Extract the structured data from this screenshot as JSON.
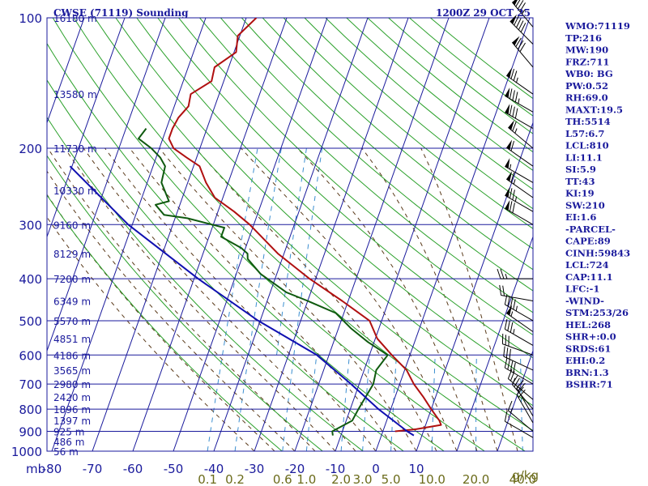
{
  "header": {
    "station": "CWSE (71119) Sounding",
    "time": "1200Z 29 OCT 25"
  },
  "colors": {
    "axis": "#1a1a9c",
    "isobar": "#1a1a9c",
    "isotherm": "#1a1a9c",
    "dry_adiabat": "#2aa02a",
    "moist_adiabat": "#5a3a1a",
    "mixing_ratio": "#3c8fd0",
    "temperature": "#b01010",
    "dewpoint": "#0f5a0f",
    "parcel": "#1010b0",
    "wind": "#000000"
  },
  "chart_data": {
    "type": "line",
    "diagram": "skew-T log-P",
    "xlabel": "",
    "ylabel": "mb",
    "pressure_ticks": [
      100,
      200,
      300,
      400,
      500,
      600,
      700,
      800,
      900,
      1000
    ],
    "temperature_ticks": [
      -80,
      -70,
      -60,
      -50,
      -40,
      -30,
      -20,
      -10,
      0,
      10
    ],
    "temperature_tick_labels": [
      "-80",
      "-70",
      "-60",
      "-50",
      "-40",
      "-30",
      "-20",
      "-10",
      "0",
      "10"
    ],
    "mixing_ratio_labels": [
      {
        "label": "0.1",
        "value": 0.1
      },
      {
        "label": "0.2",
        "value": 0.2
      },
      {
        "label": "0.6",
        "value": 0.6
      },
      {
        "label": "1.0",
        "value": 1.0
      },
      {
        "label": "2.0",
        "value": 2.0
      },
      {
        "label": "3.0",
        "value": 3.0
      },
      {
        "label": "5.0",
        "value": 5.0
      },
      {
        "label": "10.0",
        "value": 10.0
      },
      {
        "label": "20.0",
        "value": 20.0
      },
      {
        "label": "40.0",
        "value": 40.0
      }
    ],
    "mixing_ratio_unit": "g/kg",
    "height_labels": [
      {
        "label": "16180 m",
        "p": 100
      },
      {
        "label": "13580 m",
        "p": 150
      },
      {
        "label": "11730 m",
        "p": 200
      },
      {
        "label": "10330 m",
        "p": 250
      },
      {
        "label": "9160 m",
        "p": 300
      },
      {
        "label": "8129 m",
        "p": 350
      },
      {
        "label": "7200 m",
        "p": 400
      },
      {
        "label": "6349 m",
        "p": 450
      },
      {
        "label": "5570 m",
        "p": 500
      },
      {
        "label": "4851 m",
        "p": 550
      },
      {
        "label": "4186 m",
        "p": 600
      },
      {
        "label": "3565 m",
        "p": 650
      },
      {
        "label": "2980 m",
        "p": 700
      },
      {
        "label": "2420 m",
        "p": 750
      },
      {
        "label": "1896 m",
        "p": 800
      },
      {
        "label": "1397 m",
        "p": 850
      },
      {
        "label": "925 m",
        "p": 900
      },
      {
        "label": "486 m",
        "p": 950
      },
      {
        "label": "56 m",
        "p": 1000
      }
    ],
    "series": [
      {
        "key": "temperature",
        "points": [
          {
            "p": 100,
            "t": -67.5
          },
          {
            "p": 110,
            "t": -70.5
          },
          {
            "p": 120,
            "t": -69.5
          },
          {
            "p": 130,
            "t": -73.5
          },
          {
            "p": 140,
            "t": -73.0
          },
          {
            "p": 150,
            "t": -77.0
          },
          {
            "p": 160,
            "t": -76.5
          },
          {
            "p": 170,
            "t": -78.0
          },
          {
            "p": 180,
            "t": -78.5
          },
          {
            "p": 190,
            "t": -78.5
          },
          {
            "p": 200,
            "t": -76.5
          },
          {
            "p": 210,
            "t": -72.5
          },
          {
            "p": 220,
            "t": -68.5
          },
          {
            "p": 240,
            "t": -65.5
          },
          {
            "p": 260,
            "t": -62.0
          },
          {
            "p": 280,
            "t": -56.0
          },
          {
            "p": 300,
            "t": -51.0
          },
          {
            "p": 350,
            "t": -41.5
          },
          {
            "p": 400,
            "t": -31.5
          },
          {
            "p": 450,
            "t": -21.5
          },
          {
            "p": 500,
            "t": -13.0
          },
          {
            "p": 550,
            "t": -9.5
          },
          {
            "p": 600,
            "t": -4.5
          },
          {
            "p": 650,
            "t": 0.5
          },
          {
            "p": 700,
            "t": 3.5
          },
          {
            "p": 750,
            "t": 7.0
          },
          {
            "p": 800,
            "t": 10.0
          },
          {
            "p": 850,
            "t": 13.0
          },
          {
            "p": 870,
            "t": 13.8
          },
          {
            "p": 890,
            "t": 8.0
          },
          {
            "p": 900,
            "t": 3.0
          }
        ]
      },
      {
        "key": "dewpoint",
        "points": [
          {
            "p": 180,
            "t": -85.0
          },
          {
            "p": 190,
            "t": -86.0
          },
          {
            "p": 200,
            "t": -82.0
          },
          {
            "p": 210,
            "t": -79.0
          },
          {
            "p": 220,
            "t": -77.0
          },
          {
            "p": 240,
            "t": -76.5
          },
          {
            "p": 265,
            "t": -73.0
          },
          {
            "p": 270,
            "t": -76.0
          },
          {
            "p": 285,
            "t": -73.0
          },
          {
            "p": 290,
            "t": -67.0
          },
          {
            "p": 305,
            "t": -57.0
          },
          {
            "p": 320,
            "t": -57.0
          },
          {
            "p": 340,
            "t": -51.0
          },
          {
            "p": 350,
            "t": -49.0
          },
          {
            "p": 360,
            "t": -48.5
          },
          {
            "p": 390,
            "t": -44.0
          },
          {
            "p": 430,
            "t": -36.0
          },
          {
            "p": 450,
            "t": -30.0
          },
          {
            "p": 480,
            "t": -22.0
          },
          {
            "p": 520,
            "t": -17.0
          },
          {
            "p": 560,
            "t": -11.5
          },
          {
            "p": 600,
            "t": -5.5
          },
          {
            "p": 650,
            "t": -7.0
          },
          {
            "p": 700,
            "t": -6.5
          },
          {
            "p": 800,
            "t": -8.0
          },
          {
            "p": 850,
            "t": -8.5
          },
          {
            "p": 900,
            "t": -12.5
          },
          {
            "p": 920,
            "t": -12.0
          }
        ]
      },
      {
        "key": "parcel",
        "points": [
          {
            "p": 220,
            "t": -100.5
          },
          {
            "p": 300,
            "t": -81.0
          },
          {
            "p": 400,
            "t": -59.0
          },
          {
            "p": 500,
            "t": -40.5
          },
          {
            "p": 600,
            "t": -23.0
          },
          {
            "p": 700,
            "t": -12.0
          },
          {
            "p": 800,
            "t": -3.0
          },
          {
            "p": 900,
            "t": 6.0
          },
          {
            "p": 920,
            "t": 8.0
          }
        ]
      }
    ],
    "wind_barbs": [
      {
        "p": 105,
        "dir": 320,
        "kt": 85
      },
      {
        "p": 115,
        "dir": 315,
        "kt": 90
      },
      {
        "p": 130,
        "dir": 320,
        "kt": 80
      },
      {
        "p": 150,
        "dir": 305,
        "kt": 75
      },
      {
        "p": 165,
        "dir": 300,
        "kt": 85
      },
      {
        "p": 180,
        "dir": 300,
        "kt": 80
      },
      {
        "p": 200,
        "dir": 310,
        "kt": 65
      },
      {
        "p": 220,
        "dir": 305,
        "kt": 60
      },
      {
        "p": 240,
        "dir": 300,
        "kt": 55
      },
      {
        "p": 260,
        "dir": 305,
        "kt": 65
      },
      {
        "p": 280,
        "dir": 300,
        "kt": 75
      },
      {
        "p": 300,
        "dir": 300,
        "kt": 70
      },
      {
        "p": 400,
        "dir": 270,
        "kt": 25
      },
      {
        "p": 450,
        "dir": 280,
        "kt": 20
      },
      {
        "p": 500,
        "dir": 300,
        "kt": 45
      },
      {
        "p": 530,
        "dir": 305,
        "kt": 55
      },
      {
        "p": 570,
        "dir": 300,
        "kt": 35
      },
      {
        "p": 600,
        "dir": 290,
        "kt": 30
      },
      {
        "p": 650,
        "dir": 295,
        "kt": 30
      },
      {
        "p": 700,
        "dir": 300,
        "kt": 40
      },
      {
        "p": 760,
        "dir": 310,
        "kt": 25
      },
      {
        "p": 800,
        "dir": 320,
        "kt": 25
      },
      {
        "p": 830,
        "dir": 330,
        "kt": 20
      },
      {
        "p": 860,
        "dir": 330,
        "kt": 20
      },
      {
        "p": 900,
        "dir": 310,
        "kt": 15
      },
      {
        "p": 930,
        "dir": 300,
        "kt": 10
      }
    ]
  },
  "indices": [
    "WMO:71119",
    "TP:216",
    "MW:190",
    "FRZ:711",
    "WB0: BG",
    "PW:0.52",
    "RH:69.0",
    "MAXT:19.5",
    "TH:5514",
    "L57:6.7",
    "LCL:810",
    "LI:11.1",
    "SI:5.9",
    "TT:43",
    "KI:19",
    "SW:210",
    "EI:1.6",
    "-PARCEL-",
    "CAPE:89",
    "CINH:59843",
    "LCL:724",
    "CAP:11.1",
    "LFC:-1",
    "-WIND-",
    "STM:253/26",
    "HEL:268",
    "SHR+:0.0",
    "SRDS:61",
    "EHI:0.2",
    "BRN:1.3",
    "BSHR:71"
  ]
}
